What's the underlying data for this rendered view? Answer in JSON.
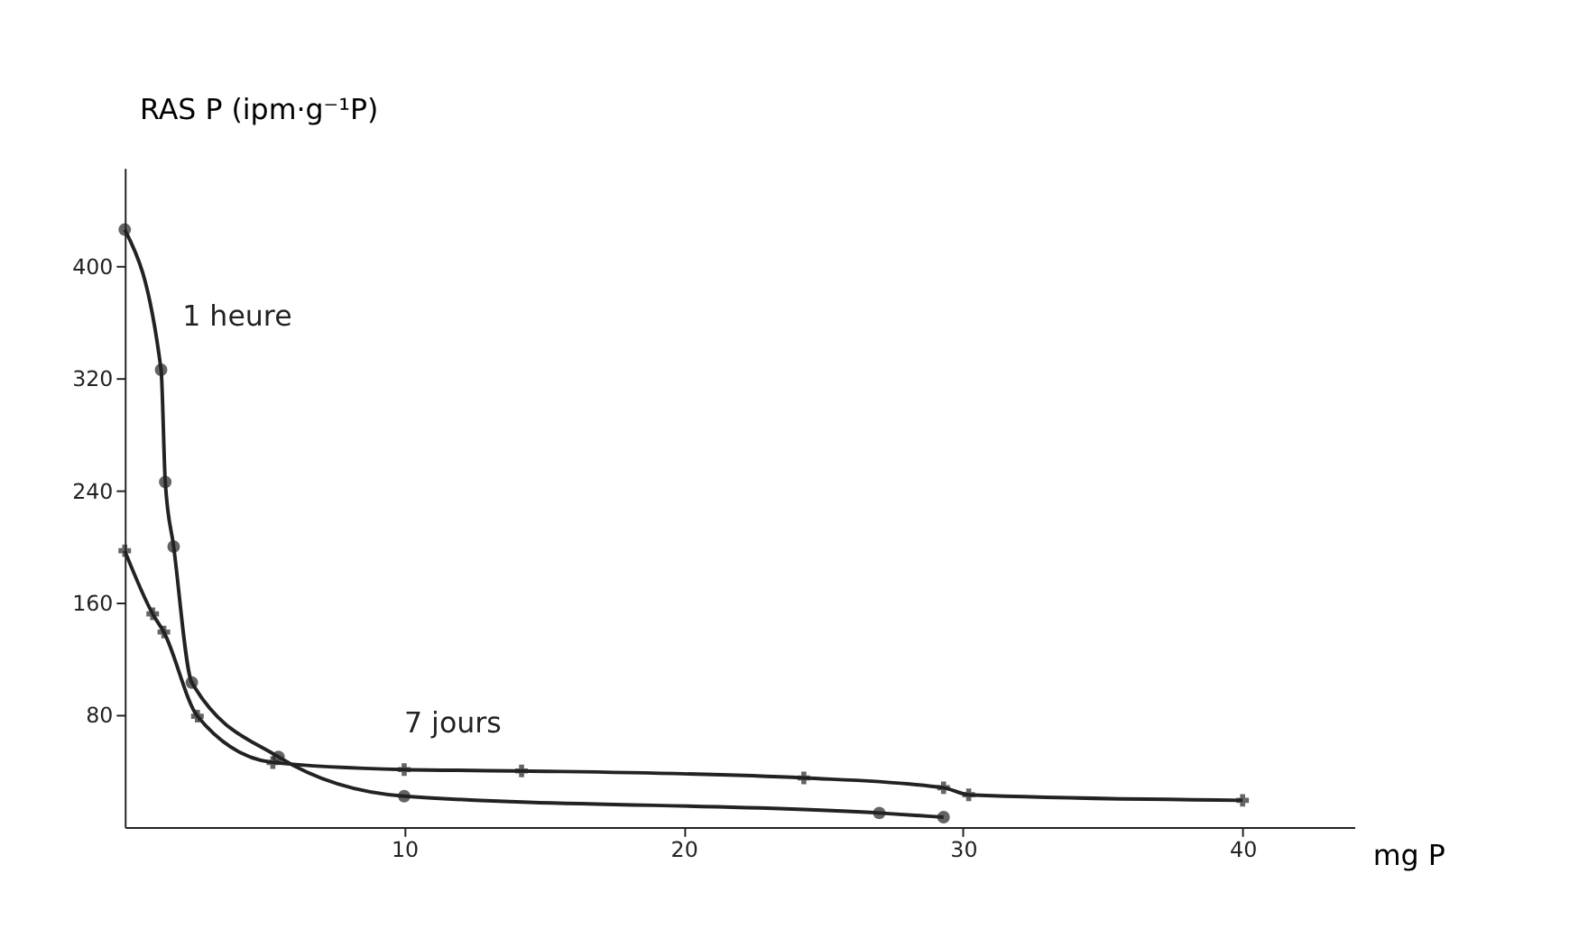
{
  "chart_data": {
    "type": "line",
    "xlabel": "mg P",
    "ylabel": "RAS P (ipm·g⁻¹P)",
    "xlim": [
      0,
      44
    ],
    "ylim": [
      0,
      470
    ],
    "xticks": [
      10,
      20,
      30,
      40
    ],
    "yticks": [
      80,
      160,
      240,
      320,
      400
    ],
    "grid": false,
    "series": [
      {
        "name": "1 heure",
        "color": "#222222",
        "marker": "circle",
        "x": [
          0,
          1.3,
          1.45,
          1.75,
          2.4,
          5.5,
          10,
          27,
          29.3
        ],
        "values": [
          426,
          326,
          246,
          200,
          103,
          50,
          22,
          10,
          7
        ]
      },
      {
        "name": "7 jours",
        "color": "#222222",
        "marker": "cross",
        "x": [
          0,
          1.0,
          1.4,
          2.6,
          5.3,
          10,
          14.2,
          24.3,
          29.3,
          30.2,
          40
        ],
        "values": [
          197,
          152,
          139,
          79,
          46,
          41,
          40,
          35,
          28,
          23,
          19
        ]
      }
    ]
  }
}
